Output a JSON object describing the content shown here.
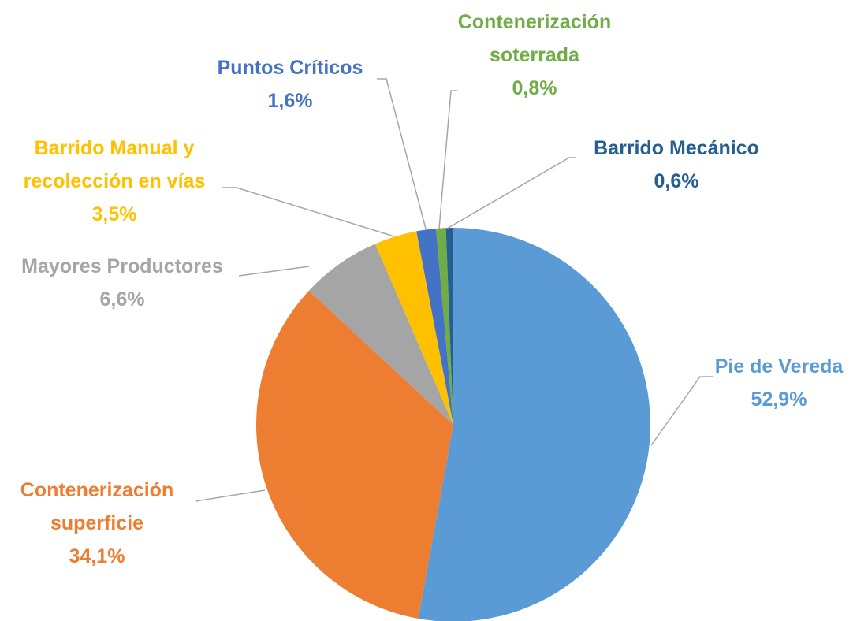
{
  "chart_data": {
    "type": "pie",
    "categories": [
      "Pie de Vereda",
      "Contenerización superficie",
      "Mayores Productores",
      "Barrido Manual y recolección en vías",
      "Puntos Críticos",
      "Contenerización soterrada",
      "Barrido Mecánico"
    ],
    "values": [
      52.9,
      34.1,
      6.6,
      3.5,
      1.6,
      0.8,
      0.6
    ],
    "value_labels": [
      "52,9%",
      "34,1%",
      "6,6%",
      "3,5%",
      "1,6%",
      "0,8%",
      "0,6%"
    ],
    "colors": [
      "#5b9bd5",
      "#ed7d31",
      "#a5a5a5",
      "#ffc000",
      "#4472c4",
      "#70ad47",
      "#255e91"
    ]
  }
}
